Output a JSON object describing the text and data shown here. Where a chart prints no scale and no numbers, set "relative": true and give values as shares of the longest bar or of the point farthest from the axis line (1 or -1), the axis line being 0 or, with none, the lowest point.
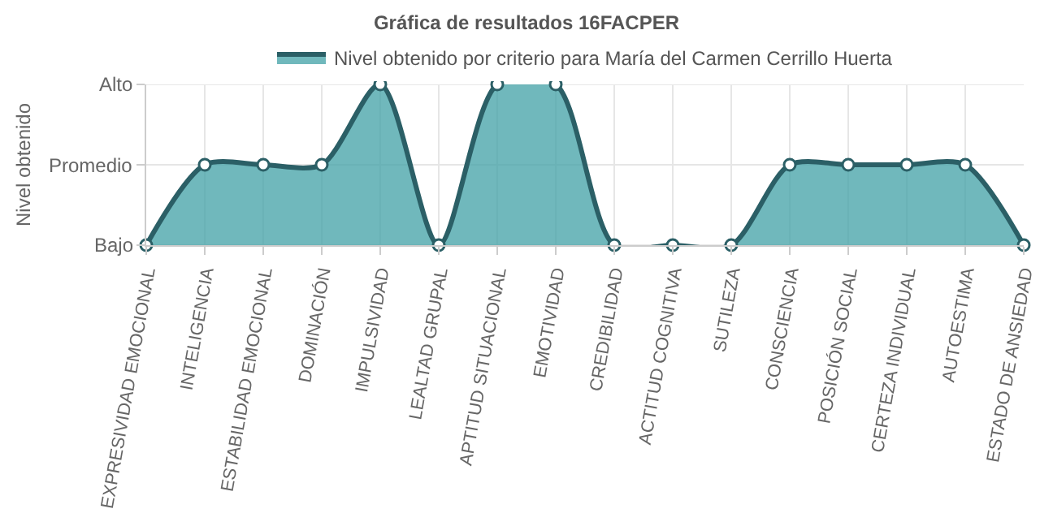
{
  "chart_data": {
    "type": "area",
    "title": "Gráfica de resultados 16FACPER",
    "ylabel": "Nivel obtenido",
    "categories": [
      "EXPRESIVIDAD EMOCIONAL",
      "INTELIGENCIA",
      "ESTABILIDAD EMOCIONAL",
      "DOMINACIÓN",
      "IMPULSIVIDAD",
      "LEALTAD GRUPAL",
      "APTITUD SITUACIONAL",
      "EMOTIVIDAD",
      "CREDIBILIDAD",
      "ACTITUD COGNITIVA",
      "SUTILEZA",
      "CONSCIENCIA",
      "POSICIÓN SOCIAL",
      "CERTEZA INDIVIDUAL",
      "AUTOESTIMA",
      "ESTADO DE ANSIEDAD"
    ],
    "series": [
      {
        "name": "Nivel obtenido por criterio para María del Carmen Cerrillo Huerta",
        "color": "#2b5f66",
        "values": [
          0,
          0.5,
          0.5,
          0.5,
          1,
          0,
          1,
          1,
          0,
          0,
          0,
          0.5,
          0.5,
          0.5,
          0.5,
          0
        ]
      }
    ],
    "relative": true,
    "ref_lines": [
      {
        "axis": "y",
        "value": 0,
        "label": "Bajo"
      },
      {
        "axis": "y",
        "value": 0.5,
        "label": "Promedio"
      },
      {
        "axis": "y",
        "value": 1,
        "label": "Alto"
      }
    ],
    "grid": true,
    "legend": "top",
    "marker": "circle",
    "line_style": "solid"
  }
}
